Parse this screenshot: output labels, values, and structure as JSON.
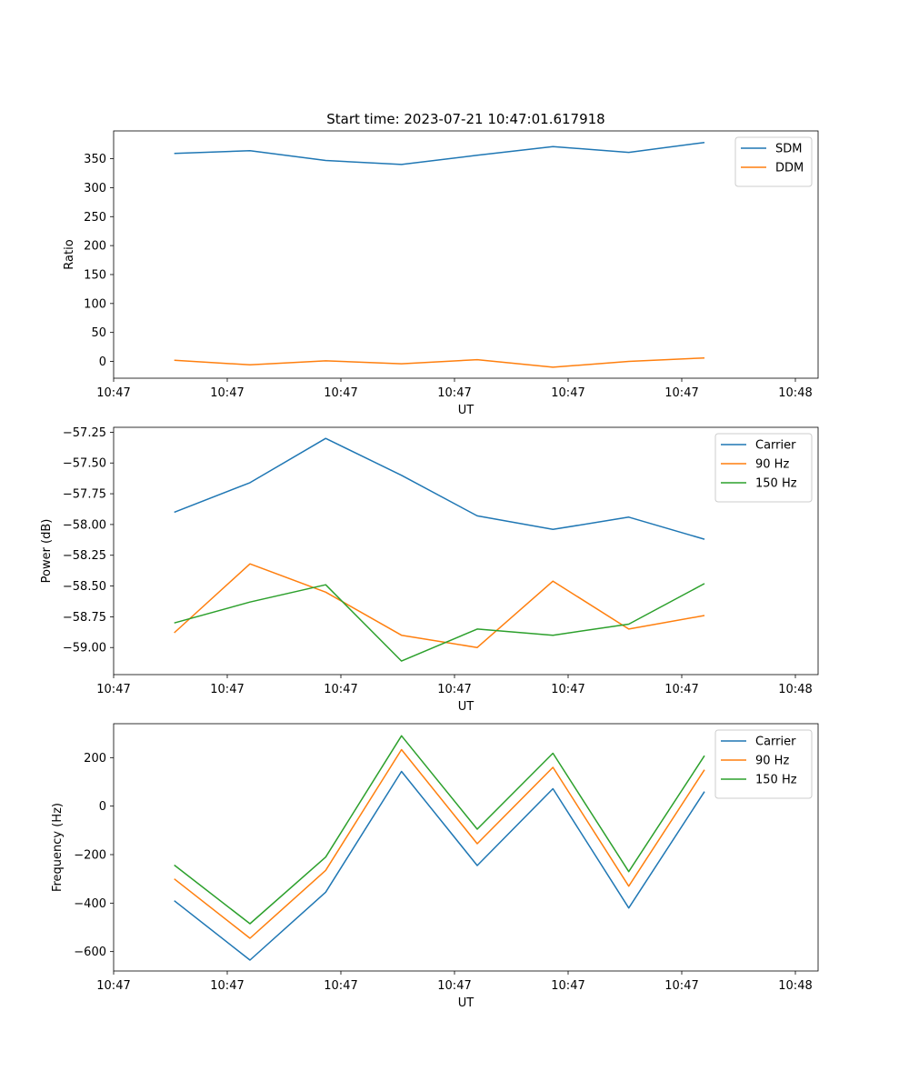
{
  "title": "Start time: 2023-07-21 10:47:01.617918",
  "xtick_labels": [
    "10:47",
    "10:47",
    "10:47",
    "10:47",
    "10:47",
    "10:47",
    "10:48"
  ],
  "chart_data": [
    {
      "type": "line",
      "xlabel": "UT",
      "ylabel": "Ratio",
      "x": [
        1,
        2,
        3,
        4,
        5,
        6,
        7,
        8
      ],
      "xlim": [
        0.2,
        9.5
      ],
      "xticks": [
        0.2,
        1.7,
        3.2,
        4.7,
        6.2,
        7.7,
        9.2
      ],
      "ylim": [
        -29,
        398
      ],
      "yticks": [
        0,
        50,
        100,
        150,
        200,
        250,
        300,
        350
      ],
      "yticklabels": [
        "0",
        "50",
        "100",
        "150",
        "200",
        "250",
        "300",
        "350"
      ],
      "series": [
        {
          "name": "SDM",
          "color": "#1f77b4",
          "values": [
            359,
            364,
            347,
            340,
            356,
            371,
            361,
            378
          ]
        },
        {
          "name": "DDM",
          "color": "#ff7f0e",
          "values": [
            2,
            -6,
            1,
            -4,
            3,
            -10,
            0,
            6
          ]
        }
      ]
    },
    {
      "type": "line",
      "xlabel": "UT",
      "ylabel": "Power (dB)",
      "x": [
        1,
        2,
        3,
        4,
        5,
        6,
        7,
        8
      ],
      "xlim": [
        0.2,
        9.5
      ],
      "xticks": [
        0.2,
        1.7,
        3.2,
        4.7,
        6.2,
        7.7,
        9.2
      ],
      "ylim": [
        -59.22,
        -57.21
      ],
      "yticks": [
        -59.0,
        -58.75,
        -58.5,
        -58.25,
        -58.0,
        -57.75,
        -57.5,
        -57.25
      ],
      "yticklabels": [
        "−59.00",
        "−58.75",
        "−58.50",
        "−58.25",
        "−58.00",
        "−57.75",
        "−57.50",
        "−57.25"
      ],
      "series": [
        {
          "name": "Carrier",
          "color": "#1f77b4",
          "values": [
            -57.9,
            -57.66,
            -57.3,
            -57.6,
            -57.93,
            -58.04,
            -57.94,
            -58.12
          ]
        },
        {
          "name": "90 Hz",
          "color": "#ff7f0e",
          "values": [
            -58.88,
            -58.32,
            -58.55,
            -58.9,
            -59.0,
            -58.46,
            -58.85,
            -58.74
          ]
        },
        {
          "name": "150 Hz",
          "color": "#2ca02c",
          "values": [
            -58.8,
            -58.63,
            -58.49,
            -59.11,
            -58.85,
            -58.9,
            -58.81,
            -58.48
          ]
        }
      ]
    },
    {
      "type": "line",
      "xlabel": "UT",
      "ylabel": "Frequency (Hz)",
      "x": [
        1,
        2,
        3,
        4,
        5,
        6,
        7,
        8
      ],
      "xlim": [
        0.2,
        9.5
      ],
      "xticks": [
        0.2,
        1.7,
        3.2,
        4.7,
        6.2,
        7.7,
        9.2
      ],
      "ylim": [
        -680,
        340
      ],
      "yticks": [
        -600,
        -400,
        -200,
        0,
        200
      ],
      "yticklabels": [
        "−600",
        "−400",
        "−200",
        "0",
        "200"
      ],
      "series": [
        {
          "name": "Carrier",
          "color": "#1f77b4",
          "values": [
            -390,
            -635,
            -355,
            143,
            -245,
            72,
            -420,
            60
          ]
        },
        {
          "name": "90 Hz",
          "color": "#ff7f0e",
          "values": [
            -300,
            -545,
            -265,
            233,
            -155,
            160,
            -330,
            150
          ]
        },
        {
          "name": "150 Hz",
          "color": "#2ca02c",
          "values": [
            -243,
            -485,
            -210,
            290,
            -95,
            218,
            -270,
            208
          ]
        }
      ]
    }
  ]
}
